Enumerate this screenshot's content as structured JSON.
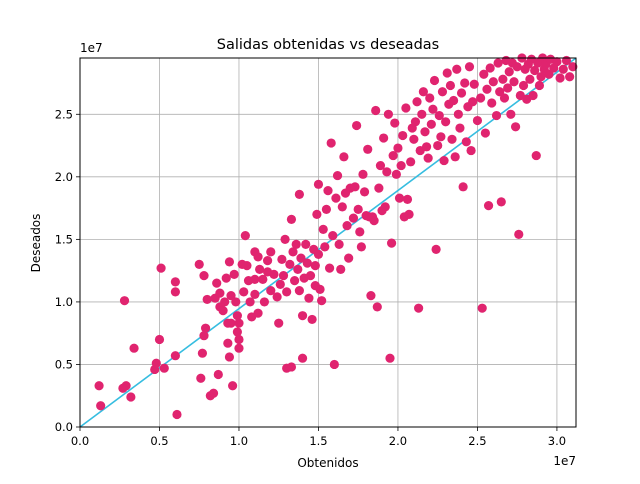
{
  "chart_data": {
    "type": "scatter",
    "title": "Salidas obtenidas vs deseadas",
    "xlabel": "Obtenidos",
    "ylabel": "Deseados",
    "x_offset_label": "1e7",
    "y_offset_label": "1e7",
    "xlim": [
      0,
      3.12
    ],
    "ylim": [
      0,
      2.95
    ],
    "x_ticks": [
      0.0,
      0.5,
      1.0,
      1.5,
      2.0,
      2.5,
      3.0
    ],
    "x_tick_labels": [
      "0.0",
      "0.5",
      "1.0",
      "1.5",
      "2.0",
      "2.5",
      "3.0"
    ],
    "y_ticks": [
      0.0,
      0.5,
      1.0,
      1.5,
      2.0,
      2.5
    ],
    "y_tick_labels": [
      "0.0",
      "0.5",
      "1.0",
      "1.5",
      "2.0",
      "2.5"
    ],
    "grid": true,
    "point_color": "#e0246f",
    "line_color": "#36bde0",
    "reference_line": {
      "x": [
        0,
        3.12
      ],
      "y": [
        0,
        2.95
      ]
    },
    "points": [
      [
        0.12,
        0.33
      ],
      [
        0.13,
        0.17
      ],
      [
        0.27,
        0.31
      ],
      [
        0.28,
        1.01
      ],
      [
        0.29,
        0.33
      ],
      [
        0.32,
        0.24
      ],
      [
        0.34,
        0.63
      ],
      [
        0.47,
        0.46
      ],
      [
        0.48,
        0.51
      ],
      [
        0.5,
        0.7
      ],
      [
        0.51,
        1.27
      ],
      [
        0.53,
        0.47
      ],
      [
        0.6,
        1.16
      ],
      [
        0.6,
        1.08
      ],
      [
        0.6,
        0.57
      ],
      [
        0.61,
        0.1
      ],
      [
        0.75,
        1.3
      ],
      [
        0.76,
        0.39
      ],
      [
        0.77,
        0.59
      ],
      [
        0.78,
        1.21
      ],
      [
        0.78,
        0.73
      ],
      [
        0.79,
        0.79
      ],
      [
        0.8,
        1.02
      ],
      [
        0.82,
        0.25
      ],
      [
        0.84,
        0.27
      ],
      [
        0.85,
        1.03
      ],
      [
        0.86,
        1.15
      ],
      [
        0.87,
        0.42
      ],
      [
        0.88,
        1.07
      ],
      [
        0.88,
        0.96
      ],
      [
        0.9,
        0.93
      ],
      [
        0.91,
        1.0
      ],
      [
        0.92,
        1.19
      ],
      [
        0.93,
        0.83
      ],
      [
        0.93,
        0.67
      ],
      [
        0.94,
        0.56
      ],
      [
        0.94,
        1.32
      ],
      [
        0.95,
        1.05
      ],
      [
        0.95,
        0.83
      ],
      [
        0.96,
        0.33
      ],
      [
        0.97,
        1.22
      ],
      [
        0.98,
        1.0
      ],
      [
        0.99,
        0.89
      ],
      [
        0.99,
        0.76
      ],
      [
        1.0,
        0.7
      ],
      [
        1.0,
        0.63
      ],
      [
        1.0,
        0.83
      ],
      [
        1.02,
        1.3
      ],
      [
        1.03,
        1.08
      ],
      [
        1.04,
        1.53
      ],
      [
        1.05,
        1.29
      ],
      [
        1.06,
        1.17
      ],
      [
        1.07,
        1.0
      ],
      [
        1.08,
        0.88
      ],
      [
        1.1,
        1.4
      ],
      [
        1.1,
        1.18
      ],
      [
        1.1,
        1.06
      ],
      [
        1.12,
        1.36
      ],
      [
        1.12,
        0.91
      ],
      [
        1.13,
        1.26
      ],
      [
        1.15,
        1.18
      ],
      [
        1.16,
        1.0
      ],
      [
        1.18,
        1.24
      ],
      [
        1.18,
        1.33
      ],
      [
        1.2,
        1.4
      ],
      [
        1.2,
        1.09
      ],
      [
        1.22,
        1.22
      ],
      [
        1.24,
        1.04
      ],
      [
        1.25,
        0.83
      ],
      [
        1.26,
        1.14
      ],
      [
        1.27,
        1.34
      ],
      [
        1.28,
        1.21
      ],
      [
        1.29,
        1.5
      ],
      [
        1.3,
        0.47
      ],
      [
        1.3,
        1.08
      ],
      [
        1.32,
        1.3
      ],
      [
        1.33,
        1.66
      ],
      [
        1.33,
        0.48
      ],
      [
        1.34,
        1.4
      ],
      [
        1.35,
        1.17
      ],
      [
        1.36,
        1.46
      ],
      [
        1.37,
        1.26
      ],
      [
        1.38,
        1.86
      ],
      [
        1.38,
        1.09
      ],
      [
        1.39,
        1.35
      ],
      [
        1.4,
        0.89
      ],
      [
        1.4,
        0.55
      ],
      [
        1.41,
        1.19
      ],
      [
        1.42,
        1.46
      ],
      [
        1.43,
        1.31
      ],
      [
        1.44,
        1.03
      ],
      [
        1.45,
        1.21
      ],
      [
        1.46,
        0.86
      ],
      [
        1.47,
        1.42
      ],
      [
        1.48,
        1.29
      ],
      [
        1.48,
        1.13
      ],
      [
        1.49,
        1.7
      ],
      [
        1.5,
        1.94
      ],
      [
        1.5,
        1.38
      ],
      [
        1.51,
        1.1
      ],
      [
        1.52,
        1.01
      ],
      [
        1.53,
        1.58
      ],
      [
        1.54,
        1.44
      ],
      [
        1.55,
        1.74
      ],
      [
        1.56,
        1.89
      ],
      [
        1.57,
        1.27
      ],
      [
        1.58,
        2.27
      ],
      [
        1.59,
        1.53
      ],
      [
        1.6,
        0.5
      ],
      [
        1.61,
        1.83
      ],
      [
        1.62,
        2.01
      ],
      [
        1.63,
        1.46
      ],
      [
        1.64,
        1.26
      ],
      [
        1.65,
        1.76
      ],
      [
        1.66,
        2.16
      ],
      [
        1.67,
        1.87
      ],
      [
        1.68,
        1.61
      ],
      [
        1.69,
        1.35
      ],
      [
        1.7,
        1.91
      ],
      [
        1.72,
        1.67
      ],
      [
        1.73,
        1.92
      ],
      [
        1.74,
        2.41
      ],
      [
        1.75,
        1.74
      ],
      [
        1.76,
        1.56
      ],
      [
        1.77,
        1.44
      ],
      [
        1.78,
        2.02
      ],
      [
        1.79,
        1.88
      ],
      [
        1.8,
        1.69
      ],
      [
        1.81,
        2.22
      ],
      [
        1.82,
        1.68
      ],
      [
        1.83,
        1.05
      ],
      [
        1.84,
        1.68
      ],
      [
        1.85,
        1.65
      ],
      [
        1.86,
        2.53
      ],
      [
        1.87,
        0.96
      ],
      [
        1.88,
        1.91
      ],
      [
        1.89,
        2.09
      ],
      [
        1.9,
        1.73
      ],
      [
        1.91,
        2.31
      ],
      [
        1.92,
        1.76
      ],
      [
        1.93,
        2.04
      ],
      [
        1.94,
        2.5
      ],
      [
        1.95,
        0.55
      ],
      [
        1.96,
        1.47
      ],
      [
        1.97,
        2.17
      ],
      [
        1.98,
        2.43
      ],
      [
        1.99,
        2.02
      ],
      [
        2.0,
        2.23
      ],
      [
        2.01,
        1.83
      ],
      [
        2.02,
        2.09
      ],
      [
        2.03,
        2.33
      ],
      [
        2.04,
        1.68
      ],
      [
        2.05,
        2.55
      ],
      [
        2.06,
        1.82
      ],
      [
        2.07,
        1.7
      ],
      [
        2.08,
        2.12
      ],
      [
        2.09,
        2.39
      ],
      [
        2.1,
        2.3
      ],
      [
        2.11,
        2.44
      ],
      [
        2.12,
        2.6
      ],
      [
        2.13,
        0.95
      ],
      [
        2.14,
        2.21
      ],
      [
        2.15,
        2.5
      ],
      [
        2.16,
        2.68
      ],
      [
        2.17,
        2.36
      ],
      [
        2.18,
        2.24
      ],
      [
        2.19,
        2.15
      ],
      [
        2.2,
        2.63
      ],
      [
        2.21,
        2.42
      ],
      [
        2.22,
        2.54
      ],
      [
        2.23,
        2.77
      ],
      [
        2.24,
        1.42
      ],
      [
        2.25,
        2.25
      ],
      [
        2.26,
        2.49
      ],
      [
        2.27,
        2.32
      ],
      [
        2.28,
        2.68
      ],
      [
        2.29,
        2.13
      ],
      [
        2.3,
        2.44
      ],
      [
        2.31,
        2.83
      ],
      [
        2.32,
        2.58
      ],
      [
        2.33,
        2.73
      ],
      [
        2.34,
        2.3
      ],
      [
        2.35,
        2.61
      ],
      [
        2.36,
        2.16
      ],
      [
        2.37,
        2.86
      ],
      [
        2.38,
        2.5
      ],
      [
        2.39,
        2.39
      ],
      [
        2.4,
        2.67
      ],
      [
        2.41,
        1.92
      ],
      [
        2.42,
        2.75
      ],
      [
        2.43,
        2.28
      ],
      [
        2.44,
        2.56
      ],
      [
        2.45,
        2.88
      ],
      [
        2.46,
        2.21
      ],
      [
        2.47,
        2.6
      ],
      [
        2.48,
        2.74
      ],
      [
        2.5,
        2.45
      ],
      [
        2.52,
        2.63
      ],
      [
        2.53,
        0.95
      ],
      [
        2.54,
        2.82
      ],
      [
        2.55,
        2.35
      ],
      [
        2.56,
        2.7
      ],
      [
        2.57,
        1.77
      ],
      [
        2.58,
        2.87
      ],
      [
        2.59,
        2.59
      ],
      [
        2.6,
        2.76
      ],
      [
        2.62,
        2.49
      ],
      [
        2.63,
        2.91
      ],
      [
        2.64,
        2.68
      ],
      [
        2.65,
        1.8
      ],
      [
        2.66,
        2.78
      ],
      [
        2.67,
        2.63
      ],
      [
        2.68,
        2.93
      ],
      [
        2.69,
        2.71
      ],
      [
        2.7,
        2.84
      ],
      [
        2.71,
        2.5
      ],
      [
        2.72,
        2.91
      ],
      [
        2.73,
        2.76
      ],
      [
        2.74,
        2.4
      ],
      [
        2.75,
        2.88
      ],
      [
        2.76,
        1.54
      ],
      [
        2.77,
        2.65
      ],
      [
        2.78,
        2.95
      ],
      [
        2.79,
        2.73
      ],
      [
        2.8,
        2.86
      ],
      [
        2.81,
        2.62
      ],
      [
        2.82,
        2.9
      ],
      [
        2.83,
        2.78
      ],
      [
        2.84,
        2.94
      ],
      [
        2.85,
        2.65
      ],
      [
        2.86,
        2.85
      ],
      [
        2.87,
        2.17
      ],
      [
        2.88,
        2.91
      ],
      [
        2.89,
        2.73
      ],
      [
        2.9,
        2.8
      ],
      [
        2.91,
        2.95
      ],
      [
        2.92,
        2.86
      ],
      [
        2.93,
        2.9
      ],
      [
        2.95,
        2.82
      ],
      [
        2.96,
        2.94
      ],
      [
        2.98,
        2.87
      ],
      [
        3.0,
        2.92
      ],
      [
        3.02,
        2.79
      ],
      [
        3.04,
        2.86
      ],
      [
        3.06,
        2.93
      ],
      [
        3.08,
        2.8
      ],
      [
        3.1,
        2.88
      ]
    ]
  }
}
